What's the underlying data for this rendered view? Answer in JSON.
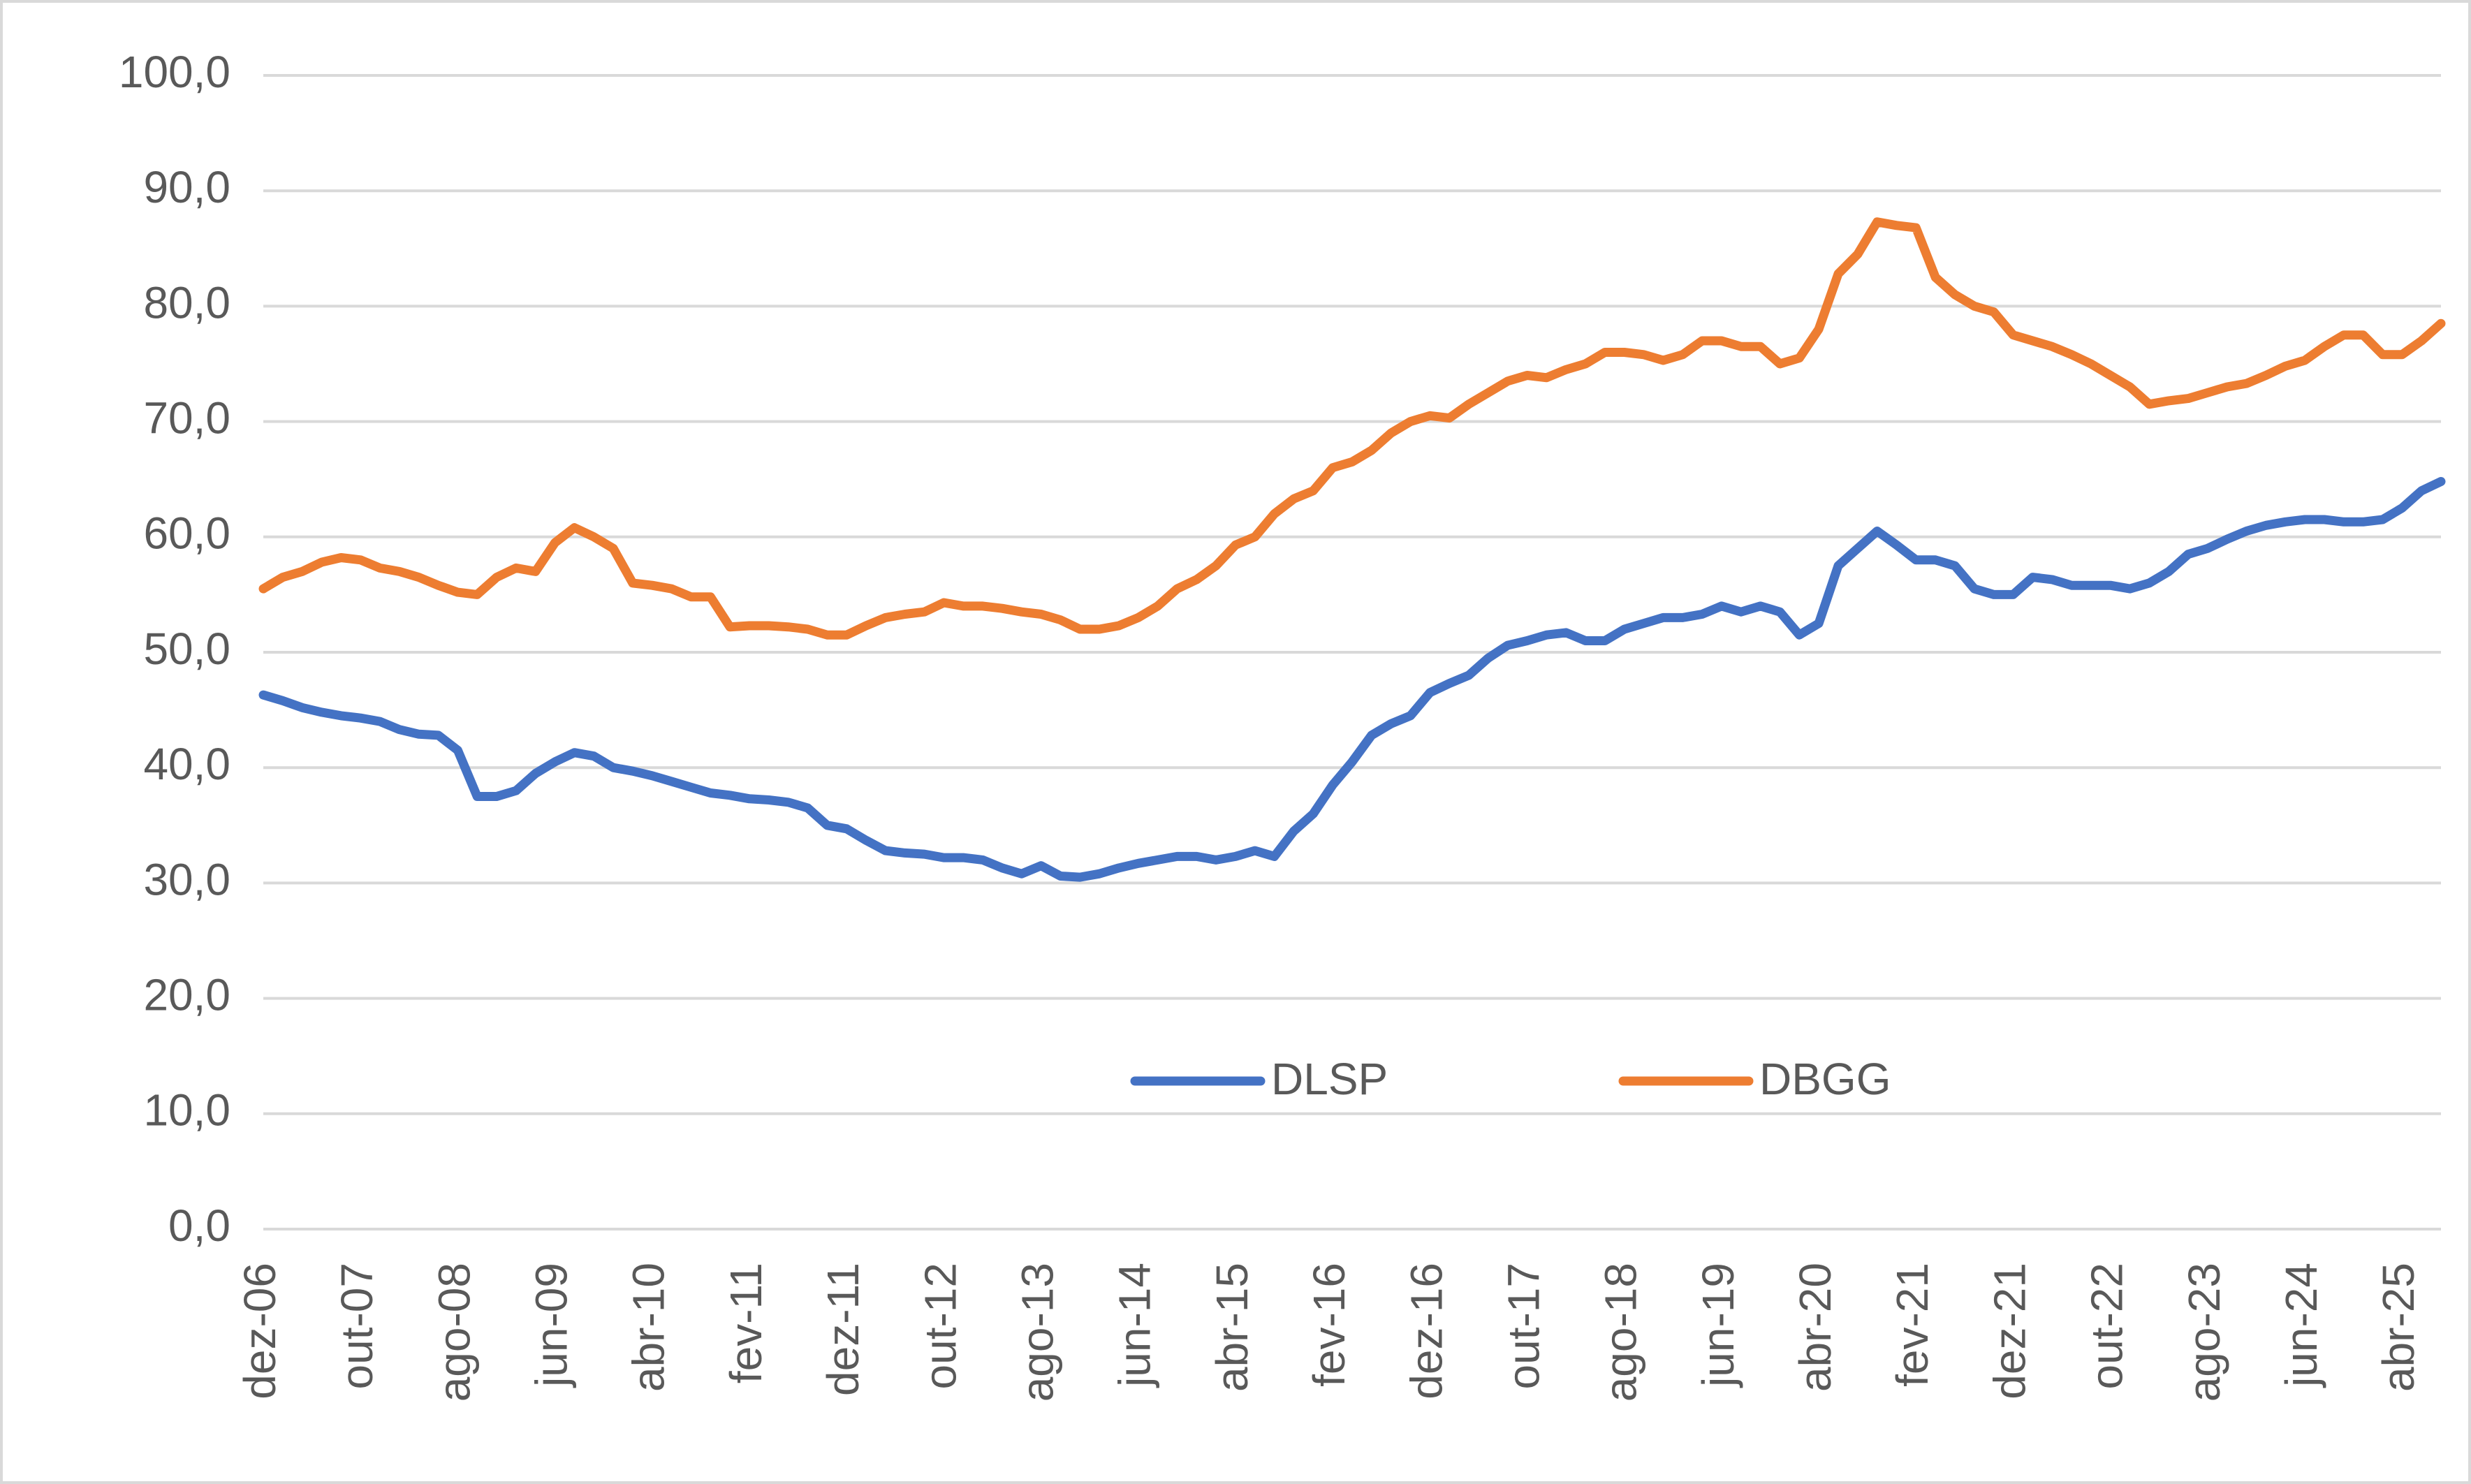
{
  "chart_data": {
    "type": "line",
    "categories": [
      "dez-06",
      null,
      null,
      null,
      null,
      "out-07",
      null,
      null,
      null,
      null,
      "ago-08",
      null,
      null,
      null,
      null,
      "jun-09",
      null,
      null,
      null,
      null,
      "abr-10",
      null,
      null,
      null,
      null,
      "fev-11",
      null,
      null,
      null,
      null,
      "dez-11",
      null,
      null,
      null,
      null,
      "out-12",
      null,
      null,
      null,
      null,
      "ago-13",
      null,
      null,
      null,
      null,
      "jun-14",
      null,
      null,
      null,
      null,
      "abr-15",
      null,
      null,
      null,
      null,
      "fev-16",
      null,
      null,
      null,
      null,
      "dez-16",
      null,
      null,
      null,
      null,
      "out-17",
      null,
      null,
      null,
      null,
      "ago-18",
      null,
      null,
      null,
      null,
      "jun-19",
      null,
      null,
      null,
      null,
      "abr-20",
      null,
      null,
      null,
      null,
      "fev-21",
      null,
      null,
      null,
      null,
      "dez-21",
      null,
      null,
      null,
      null,
      "out-22",
      null,
      null,
      null,
      null,
      "ago-23",
      null,
      null,
      null,
      null,
      "jun-24",
      null,
      null,
      null,
      null,
      "abr-25",
      null,
      null
    ],
    "series": [
      {
        "name": "DLSP",
        "color": "#4472c4",
        "values": [
          46.3,
          45.8,
          45.2,
          44.8,
          44.5,
          44.3,
          44.0,
          43.3,
          42.9,
          42.8,
          41.5,
          37.5,
          37.5,
          38.0,
          39.5,
          40.5,
          41.3,
          41.0,
          40.0,
          39.7,
          39.3,
          38.8,
          38.3,
          37.8,
          37.6,
          37.3,
          37.2,
          37.0,
          36.5,
          35.0,
          34.7,
          33.7,
          32.8,
          32.6,
          32.5,
          32.2,
          32.2,
          32.0,
          31.3,
          30.8,
          31.5,
          30.6,
          30.5,
          30.8,
          31.3,
          31.7,
          32.0,
          32.3,
          32.3,
          32.0,
          32.3,
          32.8,
          32.3,
          34.5,
          36.0,
          38.5,
          40.5,
          42.8,
          43.8,
          44.5,
          46.5,
          47.3,
          48.0,
          49.5,
          50.6,
          51.0,
          51.5,
          51.7,
          51.0,
          51.0,
          52.0,
          52.5,
          53.0,
          53.0,
          53.3,
          54.0,
          53.5,
          54.0,
          53.5,
          51.5,
          52.5,
          57.5,
          59.0,
          60.5,
          59.3,
          58.0,
          58.0,
          57.5,
          55.5,
          55.0,
          55.0,
          56.5,
          56.3,
          55.8,
          55.8,
          55.8,
          55.5,
          56.0,
          57.0,
          58.5,
          59.0,
          59.8,
          60.5,
          61.0,
          61.3,
          61.5,
          61.5,
          61.3,
          61.3,
          61.5,
          62.5,
          64.0,
          64.8
        ]
      },
      {
        "name": "DBGG",
        "color": "#ed7d31",
        "values": [
          55.5,
          56.5,
          57.0,
          57.8,
          58.2,
          58.0,
          57.3,
          57.0,
          56.5,
          55.8,
          55.2,
          55.0,
          56.5,
          57.3,
          57.0,
          59.5,
          60.8,
          60.0,
          59.0,
          56.0,
          55.8,
          55.5,
          54.8,
          54.8,
          52.2,
          52.3,
          52.3,
          52.2,
          52.0,
          51.5,
          51.5,
          52.3,
          53.0,
          53.3,
          53.5,
          54.3,
          54.0,
          54.0,
          53.8,
          53.5,
          53.3,
          52.8,
          52.0,
          52.0,
          52.3,
          53.0,
          54.0,
          55.5,
          56.3,
          57.5,
          59.3,
          60.0,
          62.0,
          63.3,
          64.0,
          66.0,
          66.5,
          67.5,
          69.0,
          70.0,
          70.5,
          70.3,
          71.5,
          72.5,
          73.5,
          74.0,
          73.8,
          74.5,
          75.0,
          76.0,
          76.0,
          75.8,
          75.3,
          75.8,
          77.0,
          77.0,
          76.5,
          76.5,
          75.0,
          75.5,
          78.0,
          82.8,
          84.5,
          87.3,
          87.0,
          86.8,
          82.5,
          81.0,
          80.0,
          79.5,
          77.5,
          77.0,
          76.5,
          75.8,
          75.0,
          74.0,
          73.0,
          71.5,
          71.8,
          72.0,
          72.5,
          73.0,
          73.3,
          74.0,
          74.8,
          75.3,
          76.5,
          77.5,
          77.5,
          75.8,
          75.8,
          77.0,
          78.5
        ]
      }
    ],
    "ylim": [
      0,
      100
    ],
    "yticks": [
      {
        "value": 0,
        "label": "0,0"
      },
      {
        "value": 10,
        "label": "10,0"
      },
      {
        "value": 20,
        "label": "20,0"
      },
      {
        "value": 30,
        "label": "30,0"
      },
      {
        "value": 40,
        "label": "40,0"
      },
      {
        "value": 50,
        "label": "50,0"
      },
      {
        "value": 60,
        "label": "60,0"
      },
      {
        "value": 70,
        "label": "70,0"
      },
      {
        "value": 80,
        "label": "80,0"
      },
      {
        "value": 90,
        "label": "90,0"
      },
      {
        "value": 100,
        "label": "100,0"
      }
    ],
    "grid": true
  }
}
